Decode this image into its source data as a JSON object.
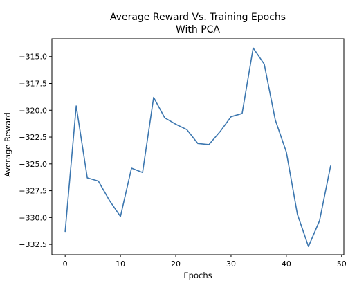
{
  "chart_data": {
    "type": "line",
    "title": "Average Reward Vs. Training Epochs",
    "subtitle": "With PCA",
    "xlabel": "Epochs",
    "ylabel": "Average Reward",
    "xlim": [
      -2.4,
      50.4
    ],
    "ylim": [
      -333.46,
      -313.34
    ],
    "xticks": [
      0,
      10,
      20,
      30,
      40,
      50
    ],
    "yticks": [
      -332.5,
      -330.0,
      -327.5,
      -325.0,
      -322.5,
      -320.0,
      -317.5,
      -315.0
    ],
    "grid": false,
    "legend": "none",
    "series": [
      {
        "color": "#3b76af",
        "x": [
          0,
          2,
          4,
          6,
          8,
          10,
          12,
          14,
          16,
          18,
          20,
          22,
          24,
          26,
          28,
          30,
          32,
          34,
          36,
          38,
          40,
          42,
          44,
          46,
          48
        ],
        "y": [
          -331.3,
          -319.6,
          -326.3,
          -326.6,
          -328.4,
          -329.9,
          -325.4,
          -325.8,
          -318.8,
          -320.7,
          -321.3,
          -321.8,
          -323.1,
          -323.2,
          -322.0,
          -320.6,
          -320.3,
          -314.2,
          -315.7,
          -320.9,
          -323.9,
          -329.7,
          -332.7,
          -330.3,
          -325.2
        ]
      }
    ]
  }
}
